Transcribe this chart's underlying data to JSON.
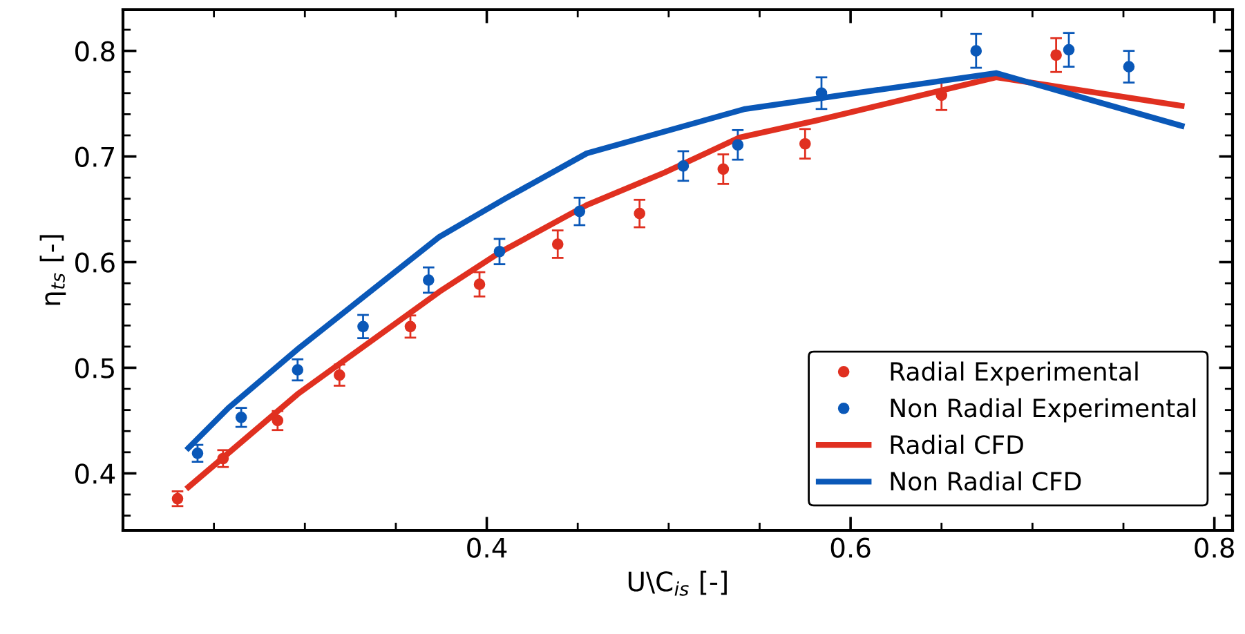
{
  "chart_data": {
    "type": "scatter",
    "xlabel": "U\\C$_{is}$ [-]",
    "ylabel": "η$_{ts}$ [-]",
    "xlim": [
      0.2,
      0.81
    ],
    "ylim": [
      0.346,
      0.839
    ],
    "xticks": [
      0.4,
      0.6,
      0.8
    ],
    "yticks": [
      0.4,
      0.5,
      0.6,
      0.7,
      0.8
    ],
    "grid": false,
    "legend": "bottom right",
    "series": [
      {
        "name": "Radial Experimental",
        "marker": "circle",
        "color": "#e03020",
        "x": [
          0.23,
          0.255,
          0.285,
          0.319,
          0.358,
          0.396,
          0.439,
          0.484,
          0.53,
          0.575,
          0.65,
          0.713
        ],
        "values": [
          0.376,
          0.414,
          0.45,
          0.493,
          0.539,
          0.579,
          0.617,
          0.646,
          0.688,
          0.712,
          0.758,
          0.796
        ],
        "errors": [
          0.007,
          0.008,
          0.009,
          0.01,
          0.0105,
          0.0115,
          0.013,
          0.013,
          0.014,
          0.014,
          0.014,
          0.016
        ]
      },
      {
        "name": "Non Radial Experimental",
        "marker": "circle",
        "color": "#0a58b8",
        "x": [
          0.241,
          0.265,
          0.296,
          0.332,
          0.368,
          0.407,
          0.451,
          0.508,
          0.538,
          0.584,
          0.669,
          0.72,
          0.753
        ],
        "values": [
          0.419,
          0.453,
          0.498,
          0.539,
          0.583,
          0.61,
          0.648,
          0.691,
          0.711,
          0.76,
          0.8,
          0.801,
          0.785
        ],
        "errors": [
          0.008,
          0.009,
          0.01,
          0.011,
          0.012,
          0.012,
          0.013,
          0.014,
          0.014,
          0.015,
          0.016,
          0.016,
          0.015
        ]
      },
      {
        "name": "Radial CFD",
        "type": "line",
        "color": "#e03020",
        "line_style": "solid",
        "x": [
          0.236,
          0.296,
          0.374,
          0.407,
          0.455,
          0.498,
          0.539,
          0.581,
          0.68,
          0.782
        ],
        "values": [
          0.387,
          0.475,
          0.572,
          0.609,
          0.654,
          0.685,
          0.718,
          0.734,
          0.775,
          0.748
        ]
      },
      {
        "name": "Non Radial CFD",
        "type": "line",
        "color": "#0a58b8",
        "line_style": "solid",
        "x": [
          0.236,
          0.258,
          0.297,
          0.374,
          0.41,
          0.455,
          0.542,
          0.68,
          0.782
        ],
        "values": [
          0.424,
          0.462,
          0.519,
          0.624,
          0.66,
          0.703,
          0.745,
          0.779,
          0.729
        ]
      }
    ]
  }
}
